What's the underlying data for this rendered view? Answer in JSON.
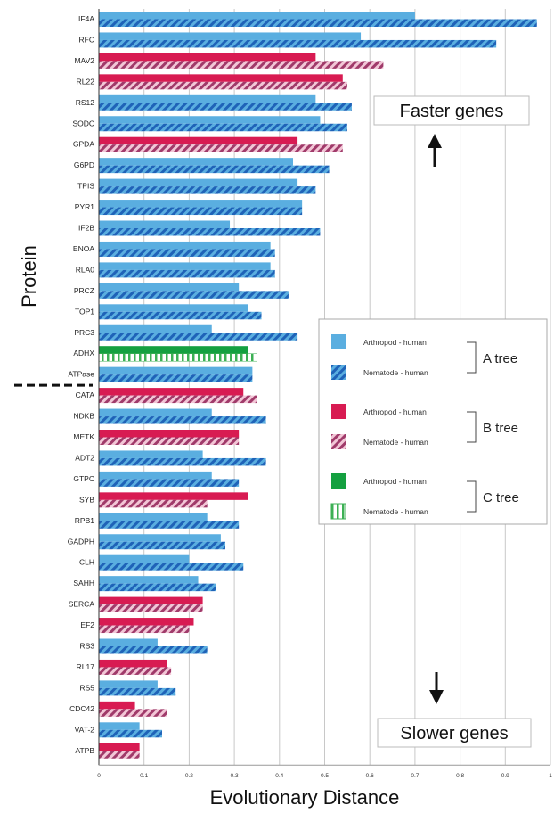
{
  "chart_data": {
    "type": "bar",
    "orientation": "horizontal",
    "xlabel": "Evolutionary Distance",
    "ylabel": "Protein",
    "xlim": [
      0,
      1.0
    ],
    "xticks": [
      "0",
      "0.1",
      "0.2",
      "0.3",
      "0.4",
      "0.5",
      "0.6",
      "0.7",
      "0.8",
      "0.9",
      "1"
    ],
    "grid": "vertical",
    "divider_after": "ATPase",
    "annotations": {
      "faster": "Faster genes",
      "slower": "Slower genes"
    },
    "colors": {
      "A": "#5aaee0",
      "A_stripe": "#1f63b8",
      "B": "#d81b52",
      "B_stripe": "#a03a6a",
      "C": "#14a040",
      "C_stripe": "#3cb054"
    },
    "legend": {
      "position": "right-middle",
      "entries": [
        {
          "label": "Arthropod - human",
          "tree": "A",
          "style": "solid"
        },
        {
          "label": "Nematode - human",
          "tree": "A",
          "style": "hatched"
        },
        {
          "label": "Arthropod - human",
          "tree": "B",
          "style": "solid"
        },
        {
          "label": "Nematode - human",
          "tree": "B",
          "style": "hatched"
        },
        {
          "label": "Arthropod - human",
          "tree": "C",
          "style": "solid"
        },
        {
          "label": "Nematode - human",
          "tree": "C",
          "style": "vstripe"
        }
      ],
      "groups": [
        {
          "tree": "A",
          "label": "A tree"
        },
        {
          "tree": "B",
          "label": "B tree"
        },
        {
          "tree": "C",
          "label": "C tree"
        }
      ]
    },
    "proteins": [
      {
        "name": "IF4A",
        "tree": "A",
        "arthropod": 0.7,
        "nematode": 0.97
      },
      {
        "name": "RFC",
        "tree": "A",
        "arthropod": 0.58,
        "nematode": 0.88
      },
      {
        "name": "MAV2",
        "tree": "B",
        "arthropod": 0.48,
        "nematode": 0.63
      },
      {
        "name": "RL22",
        "tree": "B",
        "arthropod": 0.54,
        "nematode": 0.55
      },
      {
        "name": "RS12",
        "tree": "A",
        "arthropod": 0.48,
        "nematode": 0.56
      },
      {
        "name": "SODC",
        "tree": "A",
        "arthropod": 0.49,
        "nematode": 0.55
      },
      {
        "name": "GPDA",
        "tree": "B",
        "arthropod": 0.44,
        "nematode": 0.54
      },
      {
        "name": "G6PD",
        "tree": "A",
        "arthropod": 0.43,
        "nematode": 0.51
      },
      {
        "name": "TPIS",
        "tree": "A",
        "arthropod": 0.44,
        "nematode": 0.48
      },
      {
        "name": "PYR1",
        "tree": "A",
        "arthropod": 0.45,
        "nematode": 0.45
      },
      {
        "name": "IF2B",
        "tree": "A",
        "arthropod": 0.29,
        "nematode": 0.49
      },
      {
        "name": "ENOA",
        "tree": "A",
        "arthropod": 0.38,
        "nematode": 0.39
      },
      {
        "name": "RLA0",
        "tree": "A",
        "arthropod": 0.38,
        "nematode": 0.39
      },
      {
        "name": "PRCZ",
        "tree": "A",
        "arthropod": 0.31,
        "nematode": 0.42
      },
      {
        "name": "TOP1",
        "tree": "A",
        "arthropod": 0.33,
        "nematode": 0.36
      },
      {
        "name": "PRC3",
        "tree": "A",
        "arthropod": 0.25,
        "nematode": 0.44
      },
      {
        "name": "ADHX",
        "tree": "C",
        "arthropod": 0.33,
        "nematode": 0.35
      },
      {
        "name": "ATPase",
        "tree": "A",
        "arthropod": 0.34,
        "nematode": 0.34
      },
      {
        "name": "CATA",
        "tree": "B",
        "arthropod": 0.32,
        "nematode": 0.35
      },
      {
        "name": "NDKB",
        "tree": "A",
        "arthropod": 0.25,
        "nematode": 0.37
      },
      {
        "name": "METK",
        "tree": "B",
        "arthropod": 0.31,
        "nematode": 0.31
      },
      {
        "name": "ADT2",
        "tree": "A",
        "arthropod": 0.23,
        "nematode": 0.37
      },
      {
        "name": "GTPC",
        "tree": "A",
        "arthropod": 0.25,
        "nematode": 0.31
      },
      {
        "name": "SYB",
        "tree": "B",
        "arthropod": 0.33,
        "nematode": 0.24
      },
      {
        "name": "RPB1",
        "tree": "A",
        "arthropod": 0.24,
        "nematode": 0.31
      },
      {
        "name": "GADPH",
        "tree": "A",
        "arthropod": 0.27,
        "nematode": 0.28
      },
      {
        "name": "CLH",
        "tree": "A",
        "arthropod": 0.2,
        "nematode": 0.32
      },
      {
        "name": "SAHH",
        "tree": "A",
        "arthropod": 0.22,
        "nematode": 0.26
      },
      {
        "name": "SERCA",
        "tree": "B",
        "arthropod": 0.23,
        "nematode": 0.23
      },
      {
        "name": "EF2",
        "tree": "B",
        "arthropod": 0.21,
        "nematode": 0.2
      },
      {
        "name": "RS3",
        "tree": "A",
        "arthropod": 0.13,
        "nematode": 0.24
      },
      {
        "name": "RL17",
        "tree": "B",
        "arthropod": 0.15,
        "nematode": 0.16
      },
      {
        "name": "RS5",
        "tree": "A",
        "arthropod": 0.13,
        "nematode": 0.17
      },
      {
        "name": "CDC42",
        "tree": "B",
        "arthropod": 0.08,
        "nematode": 0.15
      },
      {
        "name": "VAT-2",
        "tree": "A",
        "arthropod": 0.09,
        "nematode": 0.14
      },
      {
        "name": "ATPB",
        "tree": "B",
        "arthropod": 0.09,
        "nematode": 0.09
      }
    ]
  }
}
